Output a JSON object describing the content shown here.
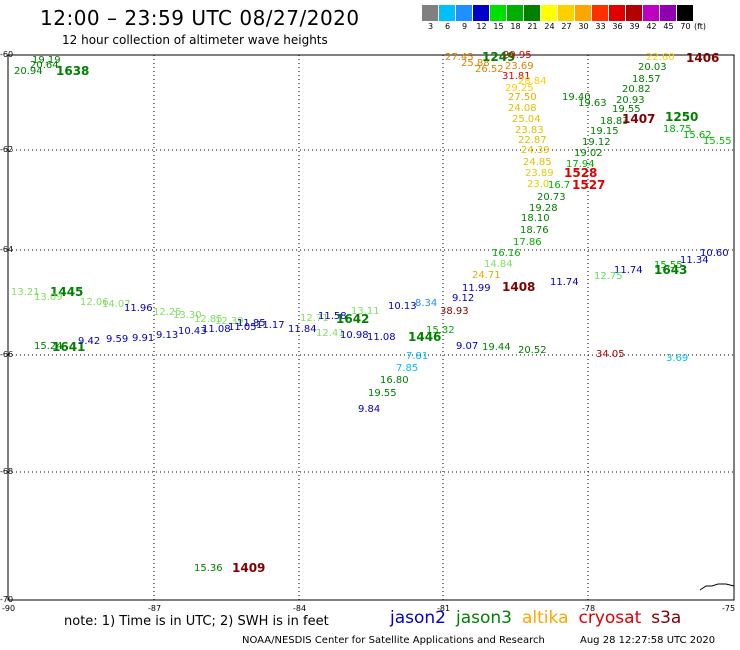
{
  "header": {
    "title": "12:00 – 23:59 UTC 08/27/2020",
    "subtitle": "12 hour collection of altimeter wave heights"
  },
  "color_scale": {
    "unit": "(ft)",
    "bins": [
      {
        "label": "3",
        "color": "#808080"
      },
      {
        "label": "6",
        "color": "#00bfff"
      },
      {
        "label": "9",
        "color": "#1e90ff"
      },
      {
        "label": "12",
        "color": "#0000cd"
      },
      {
        "label": "15",
        "color": "#00e000"
      },
      {
        "label": "18",
        "color": "#00b000"
      },
      {
        "label": "21",
        "color": "#008000"
      },
      {
        "label": "24",
        "color": "#ffff00"
      },
      {
        "label": "27",
        "color": "#ffd000"
      },
      {
        "label": "30",
        "color": "#ffa500"
      },
      {
        "label": "33",
        "color": "#ff3000"
      },
      {
        "label": "36",
        "color": "#e00000"
      },
      {
        "label": "39",
        "color": "#b00000"
      },
      {
        "label": "42",
        "color": "#c000c0"
      },
      {
        "label": "45",
        "color": "#9000b0"
      },
      {
        "label": "70",
        "color": "#000000"
      }
    ]
  },
  "axes": {
    "lat_labels": [
      "-60",
      "-62",
      "-64",
      "-66",
      "-68",
      "-70"
    ],
    "lon_labels": [
      "-90",
      "-87",
      "-84",
      "-81",
      "-78",
      "-75"
    ]
  },
  "observations": [
    {
      "t": "19.19",
      "c": "#008000"
    },
    {
      "t": "20.64",
      "c": "#008000"
    },
    {
      "t": "20.94",
      "c": "#008000"
    },
    {
      "t": "1638",
      "c": "#008000",
      "k": "time"
    },
    {
      "t": "27.45",
      "c": "#e08000"
    },
    {
      "t": "25.88",
      "c": "#e08000"
    },
    {
      "t": "1249",
      "c": "#008000",
      "k": "time"
    },
    {
      "t": "29.95",
      "c": "#e00000"
    },
    {
      "t": "26.52",
      "c": "#e08000"
    },
    {
      "t": "23.69",
      "c": "#e08000"
    },
    {
      "t": "31.81",
      "c": "#e00000"
    },
    {
      "t": "28.84",
      "c": "#ffd000"
    },
    {
      "t": "29.25",
      "c": "#ffd000"
    },
    {
      "t": "27.50",
      "c": "#e0b000"
    },
    {
      "t": "24.08",
      "c": "#e0c000"
    },
    {
      "t": "25.04",
      "c": "#e0c000"
    },
    {
      "t": "23.83",
      "c": "#e0c000"
    },
    {
      "t": "22.87",
      "c": "#e0c000"
    },
    {
      "t": "24.39",
      "c": "#e0c000"
    },
    {
      "t": "24.85",
      "c": "#e0c000"
    },
    {
      "t": "23.89",
      "c": "#e0d000"
    },
    {
      "t": "23.0",
      "c": "#e0d000"
    },
    {
      "t": "19.40",
      "c": "#008000"
    },
    {
      "t": "19.63",
      "c": "#008000"
    },
    {
      "t": "19.55",
      "c": "#008000"
    },
    {
      "t": "18.83",
      "c": "#008000"
    },
    {
      "t": "19.15",
      "c": "#008000"
    },
    {
      "t": "19.12",
      "c": "#008000"
    },
    {
      "t": "19.02",
      "c": "#008000"
    },
    {
      "t": "17.94",
      "c": "#00b000"
    },
    {
      "t": "1528",
      "c": "#e00000",
      "k": "time"
    },
    {
      "t": "16.7",
      "c": "#00b000"
    },
    {
      "t": "1527",
      "c": "#e00000",
      "k": "time"
    },
    {
      "t": "20.73",
      "c": "#008000"
    },
    {
      "t": "19.28",
      "c": "#008000"
    },
    {
      "t": "18.10",
      "c": "#008000"
    },
    {
      "t": "18.76",
      "c": "#008000"
    },
    {
      "t": "17.86",
      "c": "#00b000"
    },
    {
      "t": "16.16",
      "c": "#00b000"
    },
    {
      "t": "14.84",
      "c": "#80e060"
    },
    {
      "t": "24.71",
      "c": "#e0b000"
    },
    {
      "t": "22.60",
      "c": "#ffd000"
    },
    {
      "t": "1406",
      "c": "#800000",
      "k": "time"
    },
    {
      "t": "20.03",
      "c": "#008000"
    },
    {
      "t": "18.57",
      "c": "#008000"
    },
    {
      "t": "20.82",
      "c": "#008000"
    },
    {
      "t": "20.93",
      "c": "#008000"
    },
    {
      "t": "1407",
      "c": "#800000",
      "k": "time"
    },
    {
      "t": "1250",
      "c": "#008000",
      "k": "time"
    },
    {
      "t": "18.75",
      "c": "#00b000"
    },
    {
      "t": "15.62",
      "c": "#00b000"
    },
    {
      "t": "15.55",
      "c": "#00c000"
    },
    {
      "t": "10.60",
      "c": "#0000cd"
    },
    {
      "t": "11.34",
      "c": "#0000cd"
    },
    {
      "t": "15.55",
      "c": "#00b000"
    },
    {
      "t": "1643",
      "c": "#008000",
      "k": "time"
    },
    {
      "t": "11.74",
      "c": "#0000cd"
    },
    {
      "t": "12.75",
      "c": "#60e060"
    },
    {
      "t": "11.74",
      "c": "#0000cd"
    },
    {
      "t": "11.99",
      "c": "#0000cd"
    },
    {
      "t": "1408",
      "c": "#800000",
      "k": "time"
    },
    {
      "t": "9.12",
      "c": "#0000cd"
    },
    {
      "t": "8.34",
      "c": "#1e90ff"
    },
    {
      "t": "10.13",
      "c": "#0000cd"
    },
    {
      "t": "38.93",
      "c": "#800000"
    },
    {
      "t": "15.32",
      "c": "#00b000"
    },
    {
      "t": "1446",
      "c": "#008000",
      "k": "time"
    },
    {
      "t": "9.07",
      "c": "#0000cd"
    },
    {
      "t": "19.44",
      "c": "#008000"
    },
    {
      "t": "20.52",
      "c": "#008000"
    },
    {
      "t": "34.05",
      "c": "#b00000"
    },
    {
      "t": "3.69",
      "c": "#00bfff"
    },
    {
      "t": "7.81",
      "c": "#00bfff"
    },
    {
      "t": "7.85",
      "c": "#00bfff"
    },
    {
      "t": "16.80",
      "c": "#008000"
    },
    {
      "t": "19.55",
      "c": "#008000"
    },
    {
      "t": "9.84",
      "c": "#0000cd"
    },
    {
      "t": "13.21",
      "c": "#80e060"
    },
    {
      "t": "1445",
      "c": "#008000",
      "k": "time"
    },
    {
      "t": "13.09",
      "c": "#80e060"
    },
    {
      "t": "12.06",
      "c": "#80e060"
    },
    {
      "t": "14.07",
      "c": "#80e060"
    },
    {
      "t": "11.96",
      "c": "#0000cd"
    },
    {
      "t": "12.25",
      "c": "#80e060"
    },
    {
      "t": "13.30",
      "c": "#80e060"
    },
    {
      "t": "12.85",
      "c": "#80e060"
    },
    {
      "t": "12.39",
      "c": "#80e060"
    },
    {
      "t": "11.85",
      "c": "#0000cd"
    },
    {
      "t": "11.17",
      "c": "#0000cd"
    },
    {
      "t": "12.71",
      "c": "#80e060"
    },
    {
      "t": "11.58",
      "c": "#0000cd"
    },
    {
      "t": "1642",
      "c": "#008000",
      "k": "time"
    },
    {
      "t": "13.11",
      "c": "#80e060"
    },
    {
      "t": "15.24",
      "c": "#008000"
    },
    {
      "t": "1641",
      "c": "#008000",
      "k": "time"
    },
    {
      "t": "9.42",
      "c": "#0000cd"
    },
    {
      "t": "9.59",
      "c": "#0000cd"
    },
    {
      "t": "9.91",
      "c": "#0000cd"
    },
    {
      "t": "9.13",
      "c": "#0000cd"
    },
    {
      "t": "10.43",
      "c": "#0000cd"
    },
    {
      "t": "11.08",
      "c": "#0000cd"
    },
    {
      "t": "11.05",
      "c": "#0000cd"
    },
    {
      "t": "11.84",
      "c": "#0000cd"
    },
    {
      "t": "12.41",
      "c": "#80e060"
    },
    {
      "t": "10.98",
      "c": "#0000cd"
    },
    {
      "t": "11.08",
      "c": "#0000cd"
    },
    {
      "t": "15.36",
      "c": "#008000"
    },
    {
      "t": "1409",
      "c": "#800000",
      "k": "time"
    }
  ],
  "footer": {
    "note": "note: 1) Time is in UTC; 2) SWH is in feet",
    "satellites": [
      {
        "name": "jason2",
        "color": "#0000cd"
      },
      {
        "name": "jason3",
        "color": "#008000"
      },
      {
        "name": "altika",
        "color": "#ffa500"
      },
      {
        "name": "cryosat",
        "color": "#e00000"
      },
      {
        "name": "s3a",
        "color": "#800000"
      }
    ],
    "credit": "NOAA/NESDIS Center for Satellite Applications and Research",
    "timestamp": "Aug 28 12:27:58 UTC 2020"
  }
}
